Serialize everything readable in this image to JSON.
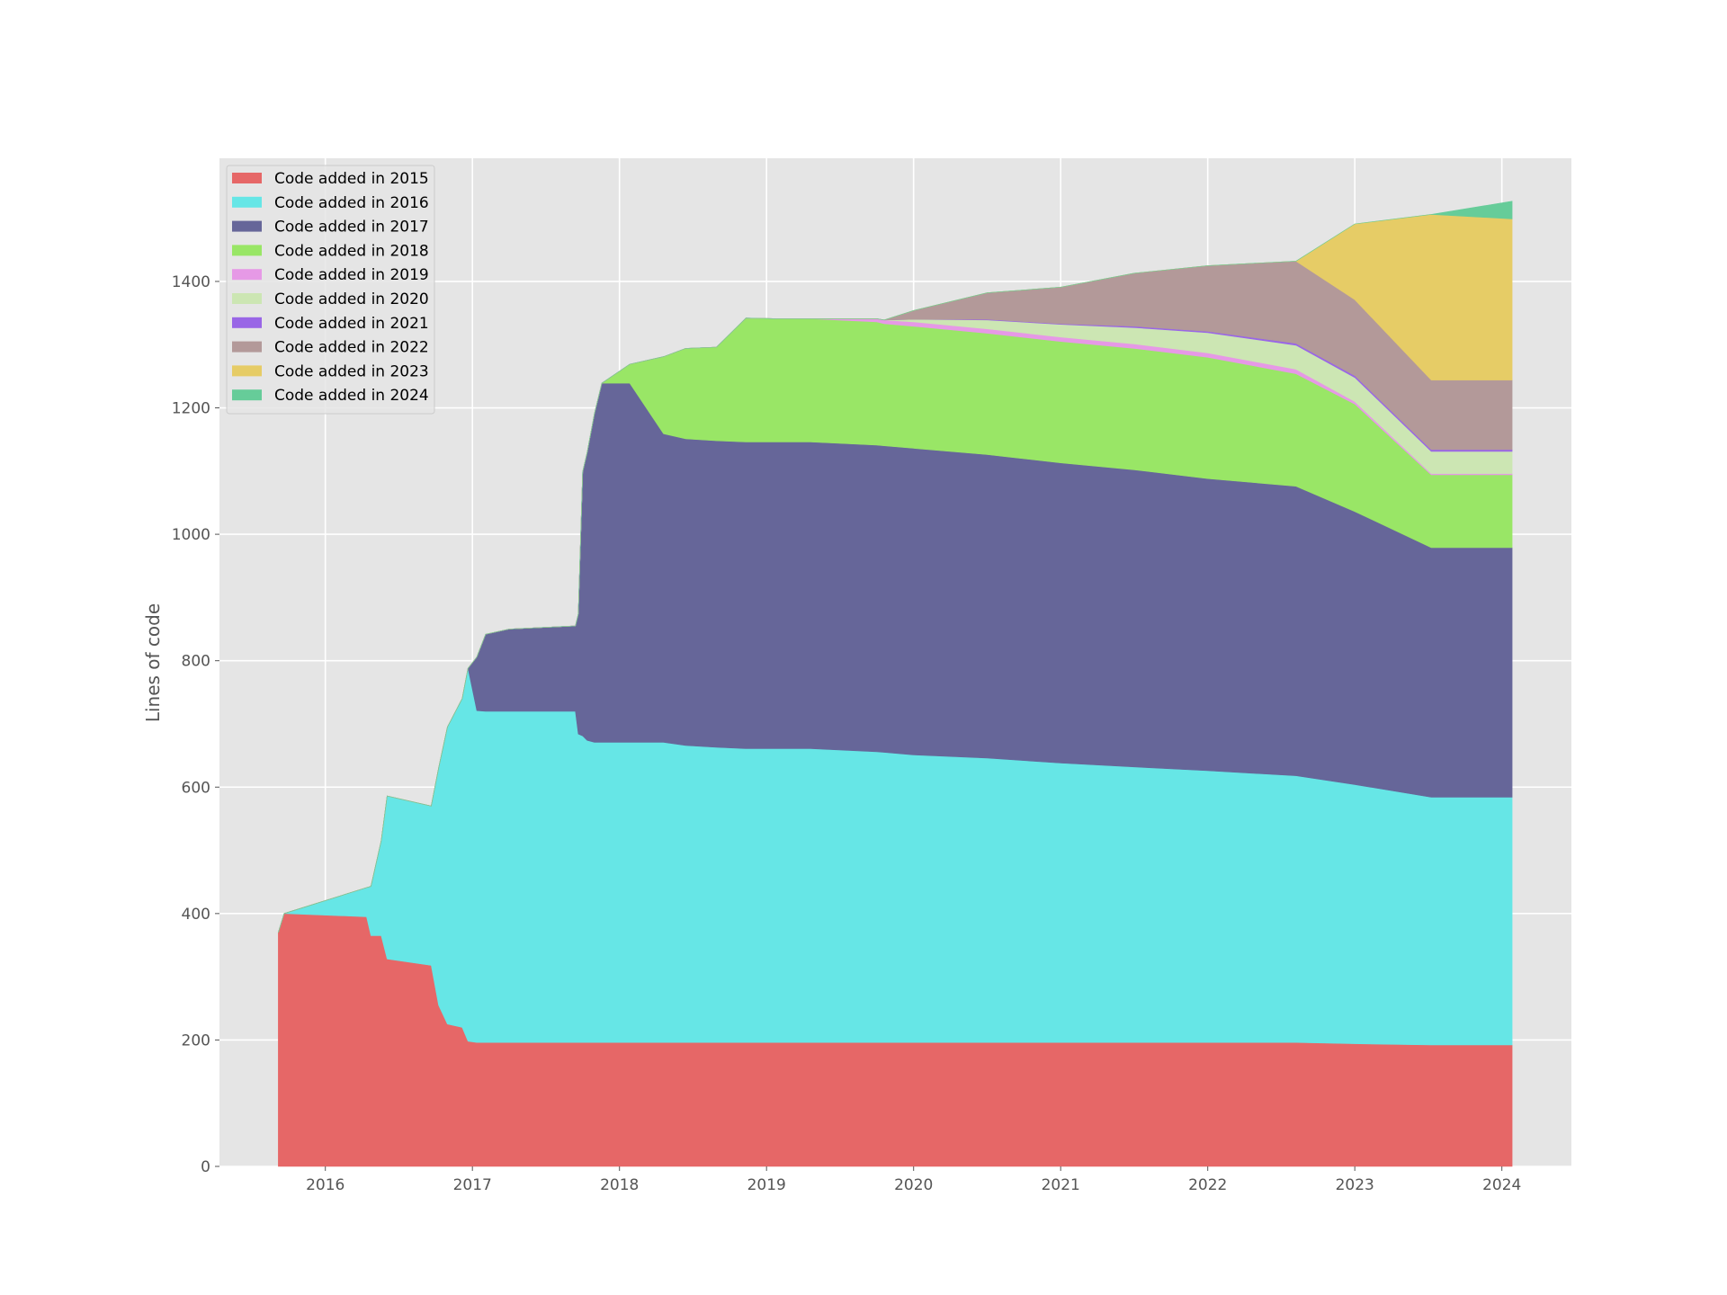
{
  "chart_data": {
    "type": "area",
    "title": "",
    "xlabel": "",
    "ylabel": "Lines of code",
    "xlim": [
      2015.28,
      2024.48
    ],
    "ylim": [
      0,
      1600
    ],
    "grid": true,
    "legend_position": "upper left",
    "x_ticks": [
      "2016",
      "2017",
      "2018",
      "2019",
      "2020",
      "2021",
      "2022",
      "2023",
      "2024"
    ],
    "y_ticks": [
      "0",
      "200",
      "400",
      "600",
      "800",
      "1000",
      "1200",
      "1400"
    ],
    "x": [
      2015.68,
      2015.72,
      2016.28,
      2016.31,
      2016.38,
      2016.42,
      2016.72,
      2016.77,
      2016.83,
      2016.93,
      2016.97,
      2017.03,
      2017.09,
      2017.25,
      2017.7,
      2017.72,
      2017.75,
      2017.78,
      2017.83,
      2017.88,
      2018.07,
      2018.3,
      2018.45,
      2018.66,
      2018.86,
      2019.08,
      2019.3,
      2019.75,
      2019.8,
      2020.0,
      2020.5,
      2021.0,
      2021.5,
      2022.0,
      2022.6,
      2023.0,
      2023.52,
      2024.07
    ],
    "series": [
      {
        "name": "Code added in 2015",
        "color": "#e66767",
        "values": [
          370,
          400,
          395,
          365,
          365,
          328,
          318,
          255,
          225,
          220,
          198,
          196,
          196,
          196,
          196,
          196,
          196,
          196,
          196,
          196,
          196,
          196,
          196,
          196,
          196,
          196,
          196,
          196,
          196,
          196,
          196,
          196,
          196,
          196,
          196,
          194,
          192,
          192
        ]
      },
      {
        "name": "Code added in 2016",
        "color": "#66e6e6",
        "values": [
          0,
          0,
          46,
          78,
          150,
          258,
          252,
          375,
          470,
          520,
          590,
          525,
          524,
          524,
          524,
          488,
          485,
          478,
          475,
          475,
          475,
          475,
          470,
          467,
          465,
          465,
          465,
          460,
          459,
          455,
          450,
          442,
          436,
          430,
          422,
          410,
          392,
          392
        ]
      },
      {
        "name": "Code added in 2017",
        "color": "#666699",
        "values": [
          0,
          0,
          0,
          0,
          0,
          0,
          0,
          0,
          0,
          0,
          0,
          85,
          122,
          130,
          135,
          190,
          418,
          455,
          520,
          568,
          568,
          488,
          485,
          485,
          485,
          485,
          485,
          485,
          485,
          485,
          480,
          475,
          470,
          462,
          458,
          432,
          395,
          395
        ]
      },
      {
        "name": "Code added in 2018",
        "color": "#99e666",
        "values": [
          0,
          0,
          0,
          0,
          0,
          0,
          0,
          0,
          0,
          0,
          0,
          0,
          0,
          0,
          0,
          0,
          0,
          0,
          0,
          0,
          30,
          122,
          143,
          148,
          196,
          195,
          195,
          195,
          193,
          193,
          192,
          192,
          192,
          192,
          178,
          170,
          115,
          115
        ]
      },
      {
        "name": "Code added in 2019",
        "color": "#e699e6",
        "values": [
          0,
          0,
          0,
          0,
          0,
          0,
          0,
          0,
          0,
          0,
          0,
          0,
          0,
          0,
          0,
          0,
          0,
          0,
          0,
          0,
          0,
          0,
          0,
          0,
          0,
          0,
          0,
          5,
          6,
          7,
          7,
          7,
          7,
          7,
          7,
          4,
          2,
          2
        ]
      },
      {
        "name": "Code added in 2020",
        "color": "#cce6b3",
        "values": [
          0,
          0,
          0,
          0,
          0,
          0,
          0,
          0,
          0,
          0,
          0,
          0,
          0,
          0,
          0,
          0,
          0,
          0,
          0,
          0,
          0,
          0,
          0,
          0,
          0,
          0,
          0,
          0,
          0,
          4,
          14,
          20,
          26,
          32,
          38,
          38,
          35,
          35
        ]
      },
      {
        "name": "Code added in 2021",
        "color": "#9966e6",
        "values": [
          0,
          0,
          0,
          0,
          0,
          0,
          0,
          0,
          0,
          0,
          0,
          0,
          0,
          0,
          0,
          0,
          0,
          0,
          0,
          0,
          0,
          0,
          0,
          0,
          0,
          0,
          0,
          0,
          0,
          0,
          1,
          1,
          2,
          2,
          3,
          3,
          3,
          3
        ]
      },
      {
        "name": "Code added in 2022",
        "color": "#b39999",
        "values": [
          0,
          0,
          0,
          0,
          0,
          0,
          0,
          0,
          0,
          0,
          0,
          0,
          0,
          0,
          0,
          0,
          0,
          0,
          0,
          0,
          0,
          0,
          0,
          0,
          0,
          0,
          0,
          0,
          0,
          14,
          42,
          58,
          84,
          104,
          130,
          120,
          110,
          110
        ]
      },
      {
        "name": "Code added in 2023",
        "color": "#e6cc66",
        "values": [
          0,
          0,
          0,
          0,
          0,
          0,
          0,
          0,
          0,
          0,
          0,
          0,
          0,
          0,
          0,
          0,
          0,
          0,
          0,
          0,
          0,
          0,
          0,
          0,
          0,
          0,
          0,
          0,
          0,
          0,
          0,
          0,
          0,
          0,
          0,
          120,
          262,
          255
        ]
      },
      {
        "name": "Code added in 2024",
        "color": "#66cc99",
        "values": [
          0,
          0,
          0,
          0,
          0,
          0,
          0,
          0,
          0,
          0,
          0,
          0,
          0,
          0,
          0,
          0,
          0,
          0,
          0,
          0,
          0,
          0,
          0,
          0,
          0,
          0,
          0,
          0,
          0,
          0,
          0,
          0,
          0,
          0,
          0,
          0,
          0,
          28
        ]
      }
    ]
  },
  "legend": {
    "items": [
      {
        "label": "Code added in 2015",
        "color": "#e66767"
      },
      {
        "label": "Code added in 2016",
        "color": "#66e6e6"
      },
      {
        "label": "Code added in 2017",
        "color": "#666699"
      },
      {
        "label": "Code added in 2018",
        "color": "#99e666"
      },
      {
        "label": "Code added in 2019",
        "color": "#e699e6"
      },
      {
        "label": "Code added in 2020",
        "color": "#cce6b3"
      },
      {
        "label": "Code added in 2021",
        "color": "#9966e6"
      },
      {
        "label": "Code added in 2022",
        "color": "#b39999"
      },
      {
        "label": "Code added in 2023",
        "color": "#e6cc66"
      },
      {
        "label": "Code added in 2024",
        "color": "#66cc99"
      }
    ]
  },
  "axes": {
    "ylabel": "Lines of code"
  }
}
